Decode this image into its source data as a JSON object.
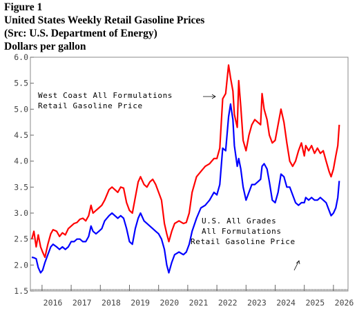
{
  "figure": {
    "label": "Figure 1",
    "title": "United States Weekly Retail Gasoline Prices",
    "source": "(Src: U.S. Department of Energy)",
    "units": "Dollars per gallon"
  },
  "annotations": {
    "west_coast_line1": "West Coast All Formulations",
    "west_coast_line2": "Retail Gasoline Price",
    "us_line1": "U.S. All Grades",
    "us_line2": "All Formulations",
    "us_line3": "Retail Gasoline Price"
  },
  "chart_data": {
    "type": "line",
    "title": "United States Weekly Retail Gasoline Prices",
    "ylabel": "Dollars per gallon",
    "xlim": [
      2015.6,
      2026.5
    ],
    "ylim": [
      1.5,
      6.0
    ],
    "y_ticks": [
      "1.5",
      "2.0",
      "2.5",
      "3.0",
      "3.5",
      "4.0",
      "4.5",
      "5.0",
      "5.5",
      "6.0"
    ],
    "x_ticks": [
      "2016",
      "2017",
      "2018",
      "2019",
      "2020",
      "2021",
      "2022",
      "2023",
      "2024",
      "2025",
      "2026"
    ],
    "grid": false,
    "series": [
      {
        "name": "West Coast All Formulations Retail Gasoline Price",
        "color": "#ff0000",
        "points": [
          [
            2015.65,
            2.5
          ],
          [
            2015.72,
            2.65
          ],
          [
            2015.8,
            2.35
          ],
          [
            2015.87,
            2.58
          ],
          [
            2015.95,
            2.35
          ],
          [
            2016.02,
            2.25
          ],
          [
            2016.1,
            2.15
          ],
          [
            2016.2,
            2.4
          ],
          [
            2016.3,
            2.6
          ],
          [
            2016.38,
            2.68
          ],
          [
            2016.5,
            2.65
          ],
          [
            2016.6,
            2.55
          ],
          [
            2016.7,
            2.62
          ],
          [
            2016.8,
            2.58
          ],
          [
            2016.9,
            2.7
          ],
          [
            2017.0,
            2.75
          ],
          [
            2017.1,
            2.8
          ],
          [
            2017.2,
            2.82
          ],
          [
            2017.3,
            2.88
          ],
          [
            2017.4,
            2.9
          ],
          [
            2017.5,
            2.85
          ],
          [
            2017.6,
            2.95
          ],
          [
            2017.68,
            3.15
          ],
          [
            2017.75,
            3.0
          ],
          [
            2017.85,
            3.05
          ],
          [
            2017.95,
            3.1
          ],
          [
            2018.05,
            3.15
          ],
          [
            2018.15,
            3.25
          ],
          [
            2018.3,
            3.45
          ],
          [
            2018.4,
            3.5
          ],
          [
            2018.5,
            3.45
          ],
          [
            2018.6,
            3.4
          ],
          [
            2018.7,
            3.5
          ],
          [
            2018.8,
            3.48
          ],
          [
            2018.9,
            3.2
          ],
          [
            2019.0,
            3.05
          ],
          [
            2019.1,
            3.0
          ],
          [
            2019.2,
            3.3
          ],
          [
            2019.3,
            3.6
          ],
          [
            2019.38,
            3.7
          ],
          [
            2019.5,
            3.55
          ],
          [
            2019.6,
            3.5
          ],
          [
            2019.7,
            3.6
          ],
          [
            2019.8,
            3.65
          ],
          [
            2019.9,
            3.55
          ],
          [
            2020.0,
            3.4
          ],
          [
            2020.1,
            3.25
          ],
          [
            2020.2,
            2.8
          ],
          [
            2020.28,
            2.6
          ],
          [
            2020.35,
            2.45
          ],
          [
            2020.45,
            2.65
          ],
          [
            2020.55,
            2.8
          ],
          [
            2020.7,
            2.85
          ],
          [
            2020.85,
            2.8
          ],
          [
            2020.95,
            2.82
          ],
          [
            2021.05,
            3.0
          ],
          [
            2021.15,
            3.4
          ],
          [
            2021.3,
            3.7
          ],
          [
            2021.45,
            3.8
          ],
          [
            2021.6,
            3.9
          ],
          [
            2021.75,
            3.95
          ],
          [
            2021.9,
            4.05
          ],
          [
            2022.0,
            4.05
          ],
          [
            2022.1,
            4.25
          ],
          [
            2022.2,
            5.2
          ],
          [
            2022.3,
            5.3
          ],
          [
            2022.4,
            5.85
          ],
          [
            2022.47,
            5.6
          ],
          [
            2022.55,
            5.35
          ],
          [
            2022.6,
            4.9
          ],
          [
            2022.7,
            4.65
          ],
          [
            2022.75,
            5.55
          ],
          [
            2022.82,
            5.05
          ],
          [
            2022.9,
            4.4
          ],
          [
            2023.0,
            4.2
          ],
          [
            2023.1,
            4.5
          ],
          [
            2023.2,
            4.7
          ],
          [
            2023.3,
            4.8
          ],
          [
            2023.4,
            4.75
          ],
          [
            2023.5,
            4.7
          ],
          [
            2023.55,
            5.3
          ],
          [
            2023.62,
            5.0
          ],
          [
            2023.72,
            4.8
          ],
          [
            2023.8,
            4.5
          ],
          [
            2023.9,
            4.35
          ],
          [
            2024.0,
            4.4
          ],
          [
            2024.1,
            4.7
          ],
          [
            2024.2,
            5.0
          ],
          [
            2024.3,
            4.75
          ],
          [
            2024.4,
            4.35
          ],
          [
            2024.5,
            4.0
          ],
          [
            2024.6,
            3.9
          ],
          [
            2024.7,
            4.0
          ],
          [
            2024.8,
            4.2
          ],
          [
            2024.9,
            4.35
          ],
          [
            2025.0,
            4.1
          ],
          [
            2025.05,
            4.3
          ],
          [
            2025.15,
            4.2
          ],
          [
            2025.25,
            4.3
          ],
          [
            2025.35,
            4.15
          ],
          [
            2025.45,
            4.25
          ],
          [
            2025.55,
            4.15
          ],
          [
            2025.65,
            4.2
          ],
          [
            2025.75,
            4.0
          ],
          [
            2025.85,
            3.8
          ],
          [
            2025.92,
            3.7
          ],
          [
            2026.0,
            3.85
          ],
          [
            2026.08,
            4.1
          ],
          [
            2026.15,
            4.3
          ],
          [
            2026.2,
            4.7
          ]
        ]
      },
      {
        "name": "U.S. All Grades All Formulations Retail Gasoline Price",
        "color": "#0000ff",
        "points": [
          [
            2015.65,
            2.15
          ],
          [
            2015.72,
            2.14
          ],
          [
            2015.8,
            2.12
          ],
          [
            2015.87,
            1.95
          ],
          [
            2015.95,
            1.85
          ],
          [
            2016.02,
            1.9
          ],
          [
            2016.1,
            2.05
          ],
          [
            2016.2,
            2.2
          ],
          [
            2016.3,
            2.35
          ],
          [
            2016.38,
            2.4
          ],
          [
            2016.5,
            2.35
          ],
          [
            2016.6,
            2.3
          ],
          [
            2016.7,
            2.35
          ],
          [
            2016.8,
            2.3
          ],
          [
            2016.9,
            2.35
          ],
          [
            2017.0,
            2.45
          ],
          [
            2017.1,
            2.45
          ],
          [
            2017.2,
            2.5
          ],
          [
            2017.3,
            2.5
          ],
          [
            2017.4,
            2.45
          ],
          [
            2017.5,
            2.45
          ],
          [
            2017.6,
            2.55
          ],
          [
            2017.68,
            2.75
          ],
          [
            2017.75,
            2.65
          ],
          [
            2017.85,
            2.6
          ],
          [
            2017.95,
            2.65
          ],
          [
            2018.05,
            2.7
          ],
          [
            2018.15,
            2.85
          ],
          [
            2018.3,
            2.95
          ],
          [
            2018.4,
            3.0
          ],
          [
            2018.5,
            2.95
          ],
          [
            2018.6,
            2.9
          ],
          [
            2018.7,
            2.95
          ],
          [
            2018.8,
            2.9
          ],
          [
            2018.9,
            2.7
          ],
          [
            2019.0,
            2.45
          ],
          [
            2019.1,
            2.4
          ],
          [
            2019.2,
            2.7
          ],
          [
            2019.3,
            2.9
          ],
          [
            2019.38,
            3.0
          ],
          [
            2019.5,
            2.85
          ],
          [
            2019.6,
            2.8
          ],
          [
            2019.7,
            2.75
          ],
          [
            2019.8,
            2.7
          ],
          [
            2019.9,
            2.65
          ],
          [
            2020.0,
            2.6
          ],
          [
            2020.1,
            2.5
          ],
          [
            2020.2,
            2.3
          ],
          [
            2020.28,
            2.0
          ],
          [
            2020.35,
            1.85
          ],
          [
            2020.45,
            2.05
          ],
          [
            2020.55,
            2.2
          ],
          [
            2020.7,
            2.25
          ],
          [
            2020.85,
            2.2
          ],
          [
            2020.95,
            2.25
          ],
          [
            2021.05,
            2.4
          ],
          [
            2021.15,
            2.65
          ],
          [
            2021.3,
            2.9
          ],
          [
            2021.45,
            3.1
          ],
          [
            2021.6,
            3.15
          ],
          [
            2021.75,
            3.25
          ],
          [
            2021.9,
            3.4
          ],
          [
            2022.0,
            3.35
          ],
          [
            2022.1,
            3.55
          ],
          [
            2022.2,
            4.25
          ],
          [
            2022.3,
            4.2
          ],
          [
            2022.4,
            4.85
          ],
          [
            2022.47,
            5.1
          ],
          [
            2022.55,
            4.8
          ],
          [
            2022.6,
            4.3
          ],
          [
            2022.7,
            3.9
          ],
          [
            2022.75,
            4.05
          ],
          [
            2022.82,
            3.85
          ],
          [
            2022.9,
            3.5
          ],
          [
            2023.0,
            3.25
          ],
          [
            2023.1,
            3.4
          ],
          [
            2023.2,
            3.55
          ],
          [
            2023.3,
            3.55
          ],
          [
            2023.4,
            3.6
          ],
          [
            2023.5,
            3.65
          ],
          [
            2023.55,
            3.9
          ],
          [
            2023.62,
            3.95
          ],
          [
            2023.72,
            3.85
          ],
          [
            2023.8,
            3.6
          ],
          [
            2023.9,
            3.25
          ],
          [
            2024.0,
            3.2
          ],
          [
            2024.1,
            3.4
          ],
          [
            2024.2,
            3.75
          ],
          [
            2024.3,
            3.7
          ],
          [
            2024.4,
            3.5
          ],
          [
            2024.5,
            3.5
          ],
          [
            2024.6,
            3.35
          ],
          [
            2024.7,
            3.2
          ],
          [
            2024.8,
            3.15
          ],
          [
            2024.9,
            3.2
          ],
          [
            2025.0,
            3.2
          ],
          [
            2025.05,
            3.3
          ],
          [
            2025.15,
            3.25
          ],
          [
            2025.25,
            3.3
          ],
          [
            2025.35,
            3.25
          ],
          [
            2025.45,
            3.25
          ],
          [
            2025.55,
            3.3
          ],
          [
            2025.65,
            3.25
          ],
          [
            2025.75,
            3.2
          ],
          [
            2025.85,
            3.05
          ],
          [
            2025.92,
            2.95
          ],
          [
            2026.0,
            3.0
          ],
          [
            2026.08,
            3.1
          ],
          [
            2026.15,
            3.3
          ],
          [
            2026.2,
            3.62
          ]
        ]
      }
    ]
  }
}
